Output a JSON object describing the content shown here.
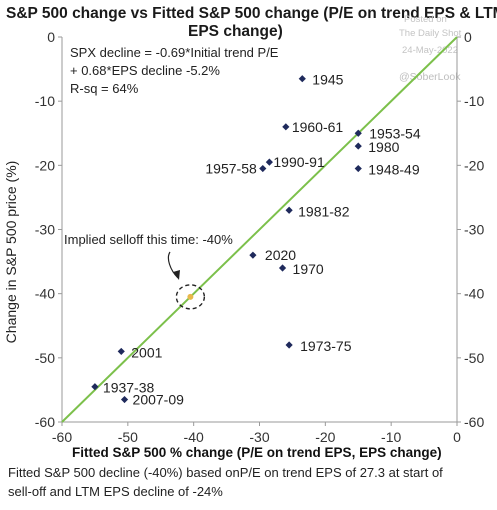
{
  "chart_data": {
    "type": "scatter",
    "title": "S&P 500 change vs Fitted S&P 500 change (P/E on trend EPS & LTM EPS change)",
    "title_lines": [
      "S&P 500 change vs Fitted S&P 500 change (P/E on trend EPS & LTM",
      "EPS change)"
    ],
    "xlabel": "Fitted S&P 500 % change (P/E on trend EPS, EPS change)",
    "ylabel": "Change in S&P 500 price (%)",
    "xlim": [
      -60,
      0
    ],
    "ylim": [
      -60,
      0
    ],
    "xticks": [
      -60,
      -50,
      -40,
      -30,
      -20,
      -10,
      0
    ],
    "yticks": [
      0,
      -10,
      -20,
      -30,
      -40,
      -50,
      -60
    ],
    "series_color": "#1f2a5c",
    "fit_line_color": "#7cc04b",
    "fit_line": [
      [
        -60,
        -60
      ],
      [
        0,
        0
      ]
    ],
    "points": [
      {
        "label": "1945",
        "x": -23.5,
        "y": -6.5
      },
      {
        "label": "1960-61",
        "x": -26,
        "y": -14
      },
      {
        "label": "1953-54",
        "x": -15,
        "y": -15
      },
      {
        "label": "1980",
        "x": -15,
        "y": -17
      },
      {
        "label": "1990-91",
        "x": -28.5,
        "y": -19.5
      },
      {
        "label": "1957-58",
        "x": -29.5,
        "y": -20.5
      },
      {
        "label": "1948-49",
        "x": -15,
        "y": -20.5
      },
      {
        "label": "1981-82",
        "x": -25.5,
        "y": -27
      },
      {
        "label": "2020",
        "x": -31,
        "y": -34
      },
      {
        "label": "1970",
        "x": -26.5,
        "y": -36
      },
      {
        "label": "1973-75",
        "x": -25.5,
        "y": -48
      },
      {
        "label": "2001",
        "x": -51,
        "y": -49
      },
      {
        "label": "1937-38",
        "x": -55,
        "y": -54.5
      },
      {
        "label": "2007-09",
        "x": -50.5,
        "y": -56.5
      }
    ],
    "highlight": {
      "label": "Implied selloff this time: -40%",
      "x": -40.5,
      "y": -40.5,
      "color": "#e8b84a"
    },
    "equation_lines": [
      "SPX decline  = -0.69*Initial trend P/E",
      "+ 0.68*EPS decline -5.2%",
      "R-sq = 64%"
    ],
    "footnote_lines": [
      "Fitted S&P 500 decline (-40%) based onP/E on trend EPS of 27.3 at start of",
      "sell-off  and LTM EPS decline of -24%"
    ],
    "watermark": {
      "source_lines": [
        "Posted on",
        "The Daily Shot",
        "24-May-2022"
      ],
      "handle": "@SoberLook"
    }
  }
}
